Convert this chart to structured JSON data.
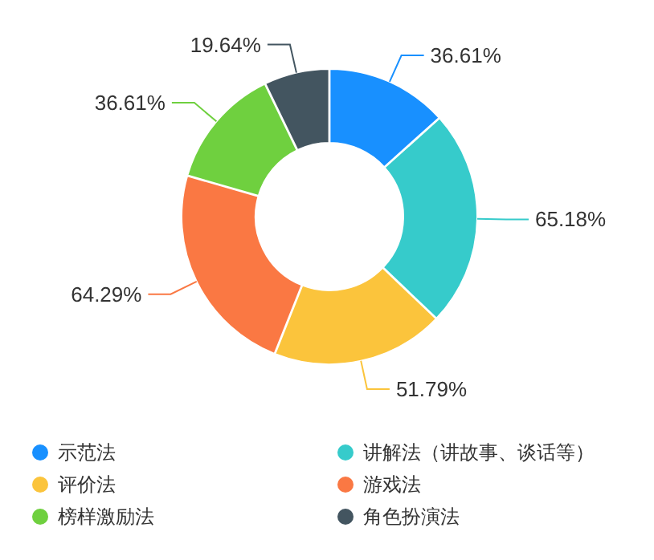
{
  "chart_data": {
    "type": "donut",
    "categories": [
      "示范法",
      "讲解法（讲故事、谈话等）",
      "评价法",
      "游戏法",
      "榜样激励法",
      "角色扮演法"
    ],
    "values": [
      36.61,
      65.18,
      51.79,
      64.29,
      36.61,
      19.64
    ],
    "colors": [
      "#1890ff",
      "#36cbcb",
      "#fbc43c",
      "#fa7843",
      "#6fd03f",
      "#435560"
    ],
    "value_labels": [
      "36.61%",
      "65.18%",
      "51.79%",
      "64.29%",
      "36.61%",
      "19.64%"
    ],
    "legend": "bottom"
  }
}
